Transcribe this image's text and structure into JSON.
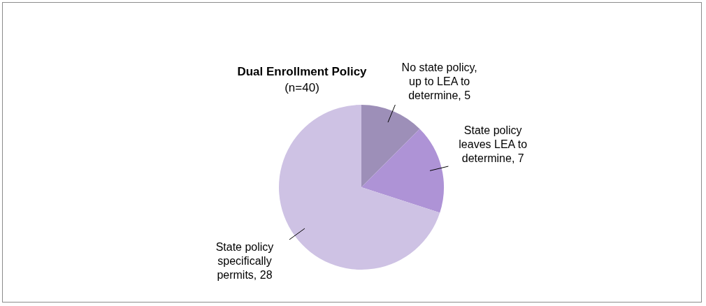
{
  "chart_data": {
    "type": "pie",
    "title": "Dual Enrollment Policy",
    "subtitle": "(n=40)",
    "categories": [
      "No state policy, up to LEA to determine",
      "State policy leaves LEA to determine",
      "State policy specifically permits"
    ],
    "values": [
      5,
      7,
      28
    ],
    "colors": [
      "#9d8fb8",
      "#ae93d6",
      "#cec2e4"
    ],
    "value_labels": [
      ", 5",
      ", 7",
      ", 28"
    ],
    "legend": false
  }
}
